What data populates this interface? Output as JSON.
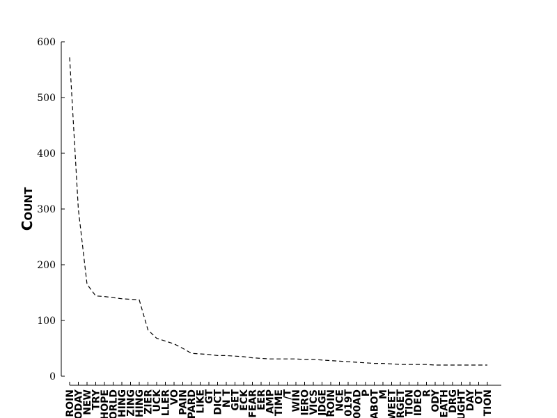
{
  "chart_data": {
    "type": "line",
    "line_style": "dashed",
    "ylabel": "COUNT",
    "ylim": [
      0,
      600
    ],
    "yticks": [
      0,
      100,
      200,
      300,
      400,
      500,
      600
    ],
    "grid": false,
    "categories": [
      "ROIN",
      "ODAY",
      "NEW",
      "TRY",
      "HOPE",
      "ORLD",
      "HING",
      "ZING",
      "HING",
      "ZIER",
      "UCK",
      "LLER",
      "VO",
      "PAIN",
      "PARD",
      "LIKE",
      "GT",
      "DICT",
      "N T",
      "GET",
      "ECK",
      "FEAR",
      "EER",
      "AMP",
      "TIME",
      "/T",
      "WIN",
      "IERO",
      "VICS",
      "JDGE",
      "ROIN",
      "NCE",
      "019T",
      "00AD",
      "P",
      "ABOT",
      "M",
      "WEET",
      "RGET",
      "TION",
      "IDEO",
      "R",
      "ODY",
      "EATH",
      "DRG",
      "UGHT",
      "DAY",
      "OT",
      "TION"
    ],
    "values": [
      572,
      300,
      165,
      144,
      143,
      141,
      139,
      138,
      137,
      83,
      68,
      63,
      58,
      50,
      41,
      40,
      39,
      37,
      37,
      36,
      35,
      33,
      32,
      31,
      31,
      31,
      31,
      30,
      30,
      29,
      28,
      27,
      26,
      25,
      24,
      23,
      23,
      22,
      21,
      21,
      21,
      21,
      20,
      20,
      20,
      20,
      20,
      20,
      20
    ]
  }
}
